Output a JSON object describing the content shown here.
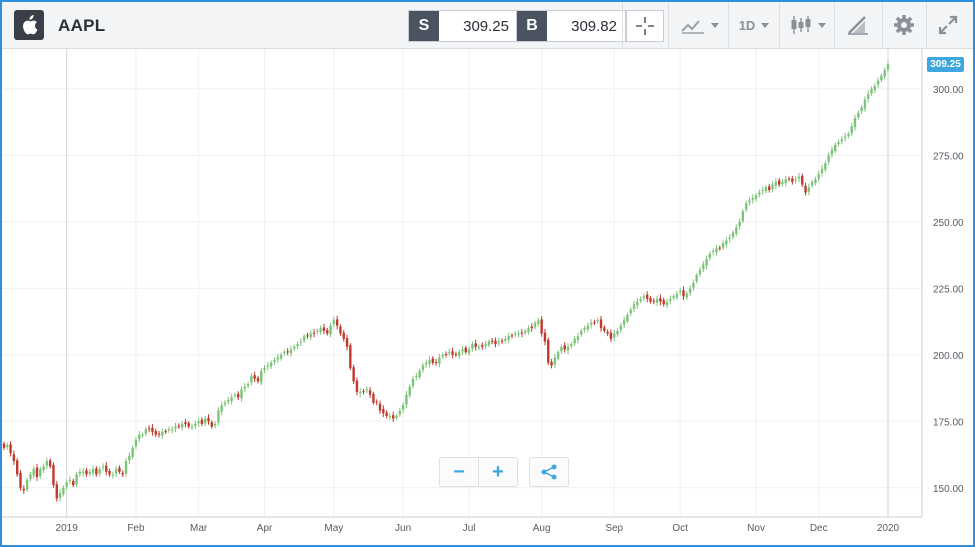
{
  "toolbar": {
    "symbol": "AAPL",
    "sell_tag": "S",
    "sell_price": "309.25",
    "buy_tag": "B",
    "buy_price": "309.82",
    "timeframe": "1D",
    "icons": [
      "apple-logo-icon",
      "crosshair-icon",
      "chart-type-icon",
      "timeframe-dropdown",
      "candlestick-icon",
      "drawing-tools-icon",
      "gear-icon",
      "expand-icon"
    ]
  },
  "price_flag": "309.25",
  "controls": {
    "zoom_out": "−",
    "zoom_in": "+"
  },
  "colors": {
    "up": "#7cc47a",
    "down": "#c0392b",
    "accent": "#3ea7e0",
    "grid": "#eef0f2",
    "axis_text": "#555b63"
  },
  "chart_data": {
    "type": "candlestick",
    "title": "",
    "xlabel": "",
    "ylabel": "",
    "ylim": [
      139,
      315
    ],
    "yticks": [
      150,
      175,
      200,
      225,
      250,
      275,
      300
    ],
    "ytick_labels": [
      "150.00",
      "175.00",
      "200.00",
      "225.00",
      "250.00",
      "275.00",
      "300.00"
    ],
    "x_tick_labels": [
      {
        "label": "2019",
        "index": 19
      },
      {
        "label": "Feb",
        "index": 40
      },
      {
        "label": "Mar",
        "index": 59
      },
      {
        "label": "Apr",
        "index": 79
      },
      {
        "label": "May",
        "index": 100
      },
      {
        "label": "Jun",
        "index": 121
      },
      {
        "label": "Jul",
        "index": 141
      },
      {
        "label": "Aug",
        "index": 163
      },
      {
        "label": "Sep",
        "index": 185
      },
      {
        "label": "Oct",
        "index": 205
      },
      {
        "label": "Nov",
        "index": 228
      },
      {
        "label": "Dec",
        "index": 247
      },
      {
        "label": "2020",
        "index": 268
      }
    ],
    "gridlines": true,
    "last_price": 309.25,
    "closes": [
      165,
      166,
      163,
      160,
      155,
      150,
      149,
      153,
      155,
      157,
      154,
      157,
      158,
      160,
      158,
      151,
      146,
      148,
      150,
      152,
      153,
      151,
      155,
      156,
      156,
      155,
      156,
      157,
      155,
      157,
      158,
      156,
      155,
      155,
      157,
      156,
      155,
      160,
      162,
      165,
      168,
      170,
      170,
      172,
      172,
      171,
      170,
      170,
      171,
      171,
      172,
      172,
      173,
      173,
      174,
      174,
      173,
      173,
      174,
      175,
      174,
      176,
      175,
      173,
      174,
      179,
      181,
      182,
      183,
      184,
      185,
      184,
      187,
      188,
      189,
      192,
      191,
      190,
      194,
      195,
      196,
      197,
      198,
      199,
      200,
      201,
      201,
      202,
      203,
      204,
      205,
      207,
      207,
      208,
      208,
      209,
      210,
      209,
      208,
      211,
      213,
      211,
      208,
      206,
      203,
      195,
      190,
      186,
      186,
      186,
      187,
      185,
      182,
      182,
      179,
      178,
      177,
      177,
      176,
      177,
      179,
      181,
      185,
      188,
      191,
      192,
      194,
      196,
      197,
      198,
      197,
      197,
      199,
      200,
      200,
      201,
      200,
      200,
      201,
      202,
      201,
      202,
      204,
      203,
      203,
      203,
      204,
      205,
      205,
      204,
      205,
      205,
      206,
      207,
      207,
      208,
      208,
      208,
      209,
      210,
      210,
      212,
      213,
      208,
      205,
      197,
      196,
      199,
      201,
      203,
      202,
      203,
      204,
      206,
      207,
      209,
      210,
      211,
      212,
      212,
      213,
      210,
      209,
      208,
      206,
      208,
      209,
      211,
      213,
      215,
      217,
      219,
      220,
      221,
      222,
      221,
      220,
      220,
      221,
      220,
      219,
      220,
      221,
      222,
      223,
      224,
      222,
      223,
      225,
      227,
      230,
      232,
      234,
      236,
      238,
      239,
      240,
      240,
      242,
      243,
      244,
      246,
      248,
      250,
      254,
      257,
      258,
      259,
      260,
      261,
      262,
      263,
      262,
      264,
      265,
      264,
      265,
      266,
      266,
      265,
      266,
      267,
      264,
      261,
      263,
      265,
      266,
      268,
      270,
      272,
      275,
      277,
      279,
      280,
      281,
      282,
      283,
      286,
      289,
      291,
      293,
      296,
      298,
      300,
      301,
      303,
      305,
      307,
      309.25
    ],
    "series": [
      {
        "name": "AAPL",
        "values_ref": "closes"
      }
    ]
  }
}
